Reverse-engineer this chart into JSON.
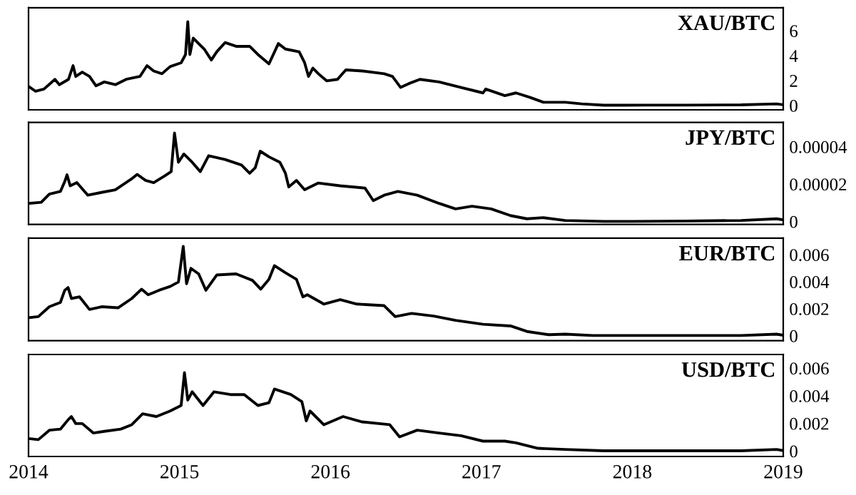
{
  "chart_data": [
    {
      "type": "line",
      "title": "XAU/BTC",
      "xlim": [
        2014,
        2019
      ],
      "xticks": [
        2014,
        2015,
        2016,
        2017,
        2018,
        2019
      ],
      "ylim": [
        -0.35,
        7.85
      ],
      "yticks": [
        0,
        2,
        4,
        6
      ],
      "tick_labels": "y",
      "grid": false,
      "legend": false,
      "x": [
        2014.0,
        2014.047,
        2014.102,
        2014.175,
        2014.204,
        2014.265,
        2014.295,
        2014.313,
        2014.356,
        2014.404,
        2014.447,
        2014.502,
        2014.575,
        2014.647,
        2014.738,
        2014.785,
        2014.829,
        2014.884,
        2014.938,
        2015.011,
        2015.04,
        2015.055,
        2015.069,
        2015.091,
        2015.127,
        2015.164,
        2015.211,
        2015.247,
        2015.302,
        2015.375,
        2015.465,
        2015.52,
        2015.593,
        2015.655,
        2015.702,
        2015.793,
        2015.829,
        2015.855,
        2015.884,
        2015.92,
        2015.975,
        2016.047,
        2016.102,
        2016.211,
        2016.356,
        2016.411,
        2016.465,
        2016.52,
        2016.593,
        2016.72,
        2016.865,
        2017.011,
        2017.029,
        2017.156,
        2017.229,
        2017.32,
        2017.411,
        2017.556,
        2017.665,
        2017.811,
        2017.956,
        2018.102,
        2018.356,
        2018.72,
        2018.956,
        2019.0
      ],
      "series": [
        {
          "color": "#000000",
          "values": [
            1.54,
            1.14,
            1.32,
            2.1,
            1.67,
            2.1,
            3.2,
            2.33,
            2.68,
            2.33,
            1.58,
            1.89,
            1.67,
            2.1,
            2.33,
            3.2,
            2.77,
            2.55,
            3.12,
            3.43,
            4.09,
            6.73,
            4.09,
            5.41,
            4.97,
            4.53,
            3.65,
            4.31,
            5.05,
            4.75,
            4.75,
            4.09,
            3.34,
            4.97,
            4.53,
            4.31,
            3.43,
            2.33,
            3.0,
            2.55,
            1.98,
            2.1,
            2.86,
            2.77,
            2.55,
            2.33,
            1.45,
            1.76,
            2.1,
            1.89,
            1.45,
            1.01,
            1.32,
            0.79,
            1.01,
            0.66,
            0.26,
            0.26,
            0.13,
            0.02,
            0.02,
            0.03,
            0.03,
            0.05,
            0.13,
            0.06
          ]
        }
      ]
    },
    {
      "type": "line",
      "title": "JPY/BTC",
      "xlim": [
        2014,
        2019
      ],
      "xticks": [
        2014,
        2015,
        2016,
        2017,
        2018,
        2019
      ],
      "ylim": [
        -1.5e-06,
        5.3e-05
      ],
      "yticks": [
        {
          "value": 0,
          "label": "0"
        },
        {
          "value": 2e-05,
          "label": "0.00002"
        },
        {
          "value": 4e-05,
          "label": "0.00004"
        }
      ],
      "tick_labels": "y",
      "grid": false,
      "legend": false,
      "x": [
        2014.0,
        2014.084,
        2014.138,
        2014.211,
        2014.24,
        2014.255,
        2014.276,
        2014.32,
        2014.393,
        2014.484,
        2014.575,
        2014.684,
        2014.72,
        2014.775,
        2014.829,
        2014.902,
        2014.945,
        2014.967,
        2014.993,
        2015.029,
        2015.084,
        2015.138,
        2015.193,
        2015.302,
        2015.411,
        2015.465,
        2015.502,
        2015.535,
        2015.593,
        2015.665,
        2015.702,
        2015.724,
        2015.775,
        2015.829,
        2015.92,
        2016.065,
        2016.229,
        2016.284,
        2016.356,
        2016.447,
        2016.575,
        2016.72,
        2016.829,
        2016.938,
        2017.065,
        2017.193,
        2017.302,
        2017.411,
        2017.556,
        2017.811,
        2017.993,
        2018.356,
        2018.72,
        2018.956,
        2019.0
      ],
      "series": [
        {
          "color": "#000000",
          "values": [
            9.7e-06,
            1.03e-05,
            1.47e-05,
            1.61e-05,
            2.14e-05,
            2.5e-05,
            1.91e-05,
            2.08e-05,
            1.41e-05,
            1.56e-05,
            1.7e-05,
            2.29e-05,
            2.52e-05,
            2.2e-05,
            2.08e-05,
            2.44e-05,
            2.67e-05,
            4.73e-05,
            3.17e-05,
            3.61e-05,
            3.17e-05,
            2.67e-05,
            3.52e-05,
            3.32e-05,
            3.02e-05,
            2.58e-05,
            2.88e-05,
            3.76e-05,
            3.46e-05,
            3.17e-05,
            2.58e-05,
            1.85e-05,
            2.2e-05,
            1.7e-05,
            2.06e-05,
            1.91e-05,
            1.79e-05,
            1.12e-05,
            1.41e-05,
            1.61e-05,
            1.41e-05,
            9.7e-06,
            6.8e-06,
            8.2e-06,
            6.8e-06,
            3.2e-06,
            1.5e-06,
            2.1e-06,
            6e-07,
            1e-07,
            1e-07,
            3e-07,
            6e-07,
            1.5e-06,
            9e-07
          ]
        }
      ]
    },
    {
      "type": "line",
      "title": "EUR/BTC",
      "xlim": [
        2014,
        2019
      ],
      "xticks": [
        2014,
        2015,
        2016,
        2017,
        2018,
        2019
      ],
      "ylim": [
        -0.00036,
        0.00723
      ],
      "yticks": [
        0,
        0.002,
        0.004,
        0.006
      ],
      "tick_labels": "y",
      "grid": false,
      "legend": false,
      "x": [
        2014.0,
        2014.065,
        2014.138,
        2014.211,
        2014.24,
        2014.262,
        2014.284,
        2014.338,
        2014.404,
        2014.484,
        2014.593,
        2014.684,
        2014.749,
        2014.793,
        2014.865,
        2014.938,
        2014.993,
        2015.025,
        2015.047,
        2015.076,
        2015.127,
        2015.175,
        2015.247,
        2015.375,
        2015.484,
        2015.538,
        2015.593,
        2015.629,
        2015.702,
        2015.775,
        2015.818,
        2015.847,
        2015.956,
        2016.065,
        2016.175,
        2016.356,
        2016.429,
        2016.538,
        2016.684,
        2016.829,
        2017.011,
        2017.193,
        2017.302,
        2017.447,
        2017.556,
        2017.738,
        2017.993,
        2018.356,
        2018.72,
        2018.956,
        2019.0
      ],
      "series": [
        {
          "color": "#000000",
          "values": [
            0.00134,
            0.00142,
            0.00215,
            0.00247,
            0.00337,
            0.00357,
            0.00276,
            0.00288,
            0.00195,
            0.00215,
            0.00207,
            0.00276,
            0.00345,
            0.00304,
            0.00337,
            0.00365,
            0.00398,
            0.00661,
            0.00385,
            0.00499,
            0.00458,
            0.00337,
            0.0045,
            0.00458,
            0.0041,
            0.00345,
            0.00418,
            0.00519,
            0.00467,
            0.00418,
            0.00288,
            0.00304,
            0.00235,
            0.00268,
            0.00235,
            0.00223,
            0.00142,
            0.00166,
            0.00146,
            0.00114,
            0.00085,
            0.00073,
            0.00032,
            8e-05,
            0.00012,
            2e-05,
            2e-05,
            2e-05,
            2e-05,
            0.00012,
            4e-05
          ]
        }
      ]
    },
    {
      "type": "line",
      "title": "USD/BTC",
      "xlim": [
        2014,
        2019
      ],
      "xticks": [
        2014,
        2015,
        2016,
        2017,
        2018,
        2019
      ],
      "ylim": [
        -0.00039,
        0.00699
      ],
      "yticks": [
        0,
        0.002,
        0.004,
        0.006
      ],
      "grid": false,
      "legend": false,
      "x": [
        2014.0,
        2014.065,
        2014.138,
        2014.211,
        2014.265,
        2014.284,
        2014.313,
        2014.356,
        2014.429,
        2014.502,
        2014.611,
        2014.684,
        2014.756,
        2014.847,
        2014.938,
        2015.011,
        2015.033,
        2015.055,
        2015.084,
        2015.156,
        2015.229,
        2015.338,
        2015.429,
        2015.52,
        2015.593,
        2015.629,
        2015.738,
        2015.811,
        2015.84,
        2015.865,
        2015.956,
        2016.084,
        2016.211,
        2016.393,
        2016.458,
        2016.575,
        2016.72,
        2016.865,
        2017.011,
        2017.156,
        2017.229,
        2017.375,
        2017.556,
        2017.811,
        2018.356,
        2018.72,
        2018.956,
        2019.0
      ],
      "series": [
        {
          "color": "#000000",
          "values": [
            0.00091,
            0.00083,
            0.00151,
            0.00159,
            0.0023,
            0.0025,
            0.00199,
            0.00199,
            0.00131,
            0.00143,
            0.00159,
            0.00191,
            0.0027,
            0.0025,
            0.0029,
            0.0033,
            0.00568,
            0.00369,
            0.00429,
            0.0033,
            0.00429,
            0.00409,
            0.00409,
            0.0033,
            0.0035,
            0.00449,
            0.00409,
            0.00358,
            0.00219,
            0.0029,
            0.00191,
            0.0025,
            0.00211,
            0.00191,
            0.00103,
            0.00151,
            0.00131,
            0.00111,
            0.00072,
            0.00072,
            0.0006,
            0.0002,
            0.00012,
            2e-05,
            2e-05,
            2e-05,
            0.00012,
            4e-05
          ]
        }
      ]
    }
  ]
}
